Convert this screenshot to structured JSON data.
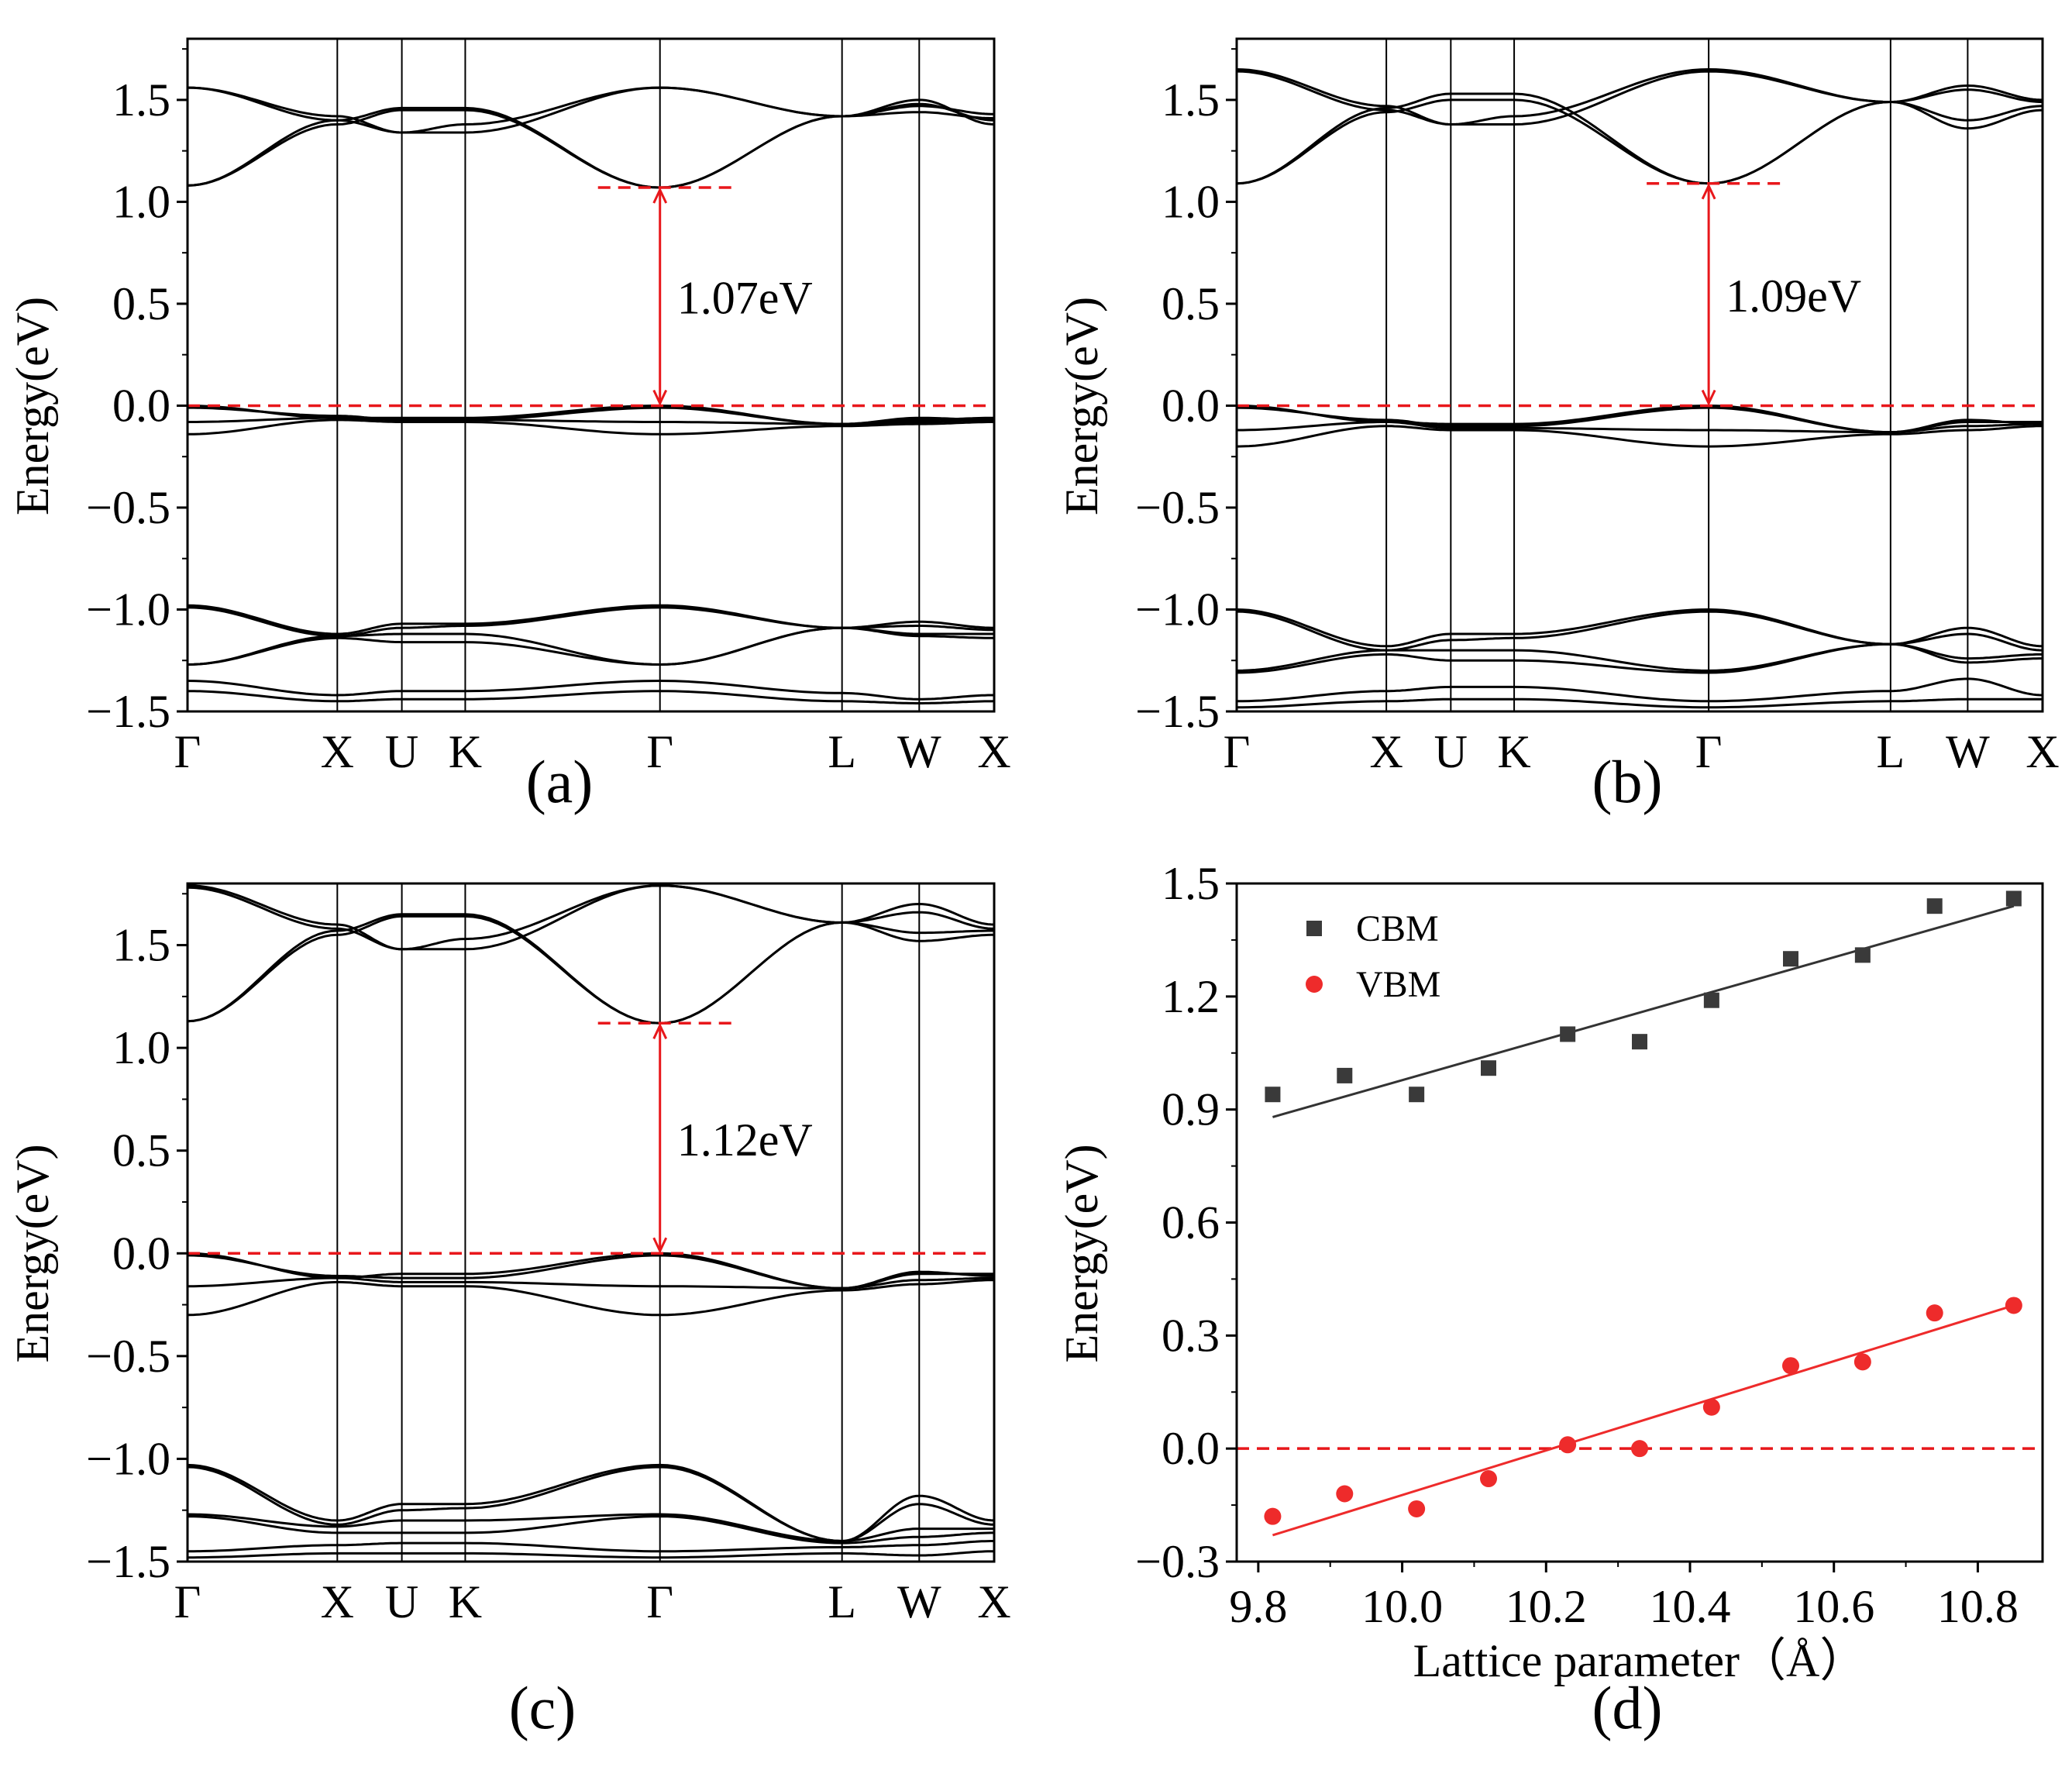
{
  "colors": {
    "band": "#000000",
    "red": "#e8171b",
    "cbm": "#3a3a3a",
    "vbm": "#ee2b2b",
    "fitCbm": "#333333",
    "fitVbm": "#ee2b2b"
  },
  "chart_data": [
    {
      "type": "line",
      "id": "a",
      "panel_label": "(a)",
      "ylabel": "Energy(eV)",
      "ylim": [
        -1.5,
        1.8
      ],
      "yticks": [
        1.5,
        1.0,
        0.5,
        0.0,
        -0.5,
        -1.0,
        -1.5
      ],
      "ytick_labels": [
        "1.5",
        "1.0",
        "0.5",
        "0.0",
        "−0.5",
        "−1.0",
        "−1.5"
      ],
      "kpath": [
        "Γ",
        "X",
        "U",
        "K",
        "Γ",
        "L",
        "W",
        "X"
      ],
      "kpos": [
        0,
        0.1857,
        0.2657,
        0.3443,
        0.5857,
        0.8114,
        0.9071,
        1.0
      ],
      "vbm": 0.0,
      "cbm": 1.07,
      "gap_label": "1.07eV",
      "conduction_bands": [
        {
          "pts": [
            1.08,
            1.38,
            1.45,
            1.45,
            1.07,
            1.42,
            1.44,
            1.41
          ]
        },
        {
          "pts": [
            1.08,
            1.4,
            1.46,
            1.46,
            1.07,
            1.42,
            1.47,
            1.43
          ]
        },
        {
          "pts": [
            1.56,
            1.4,
            1.34,
            1.34,
            1.56,
            1.42,
            1.5,
            1.38
          ]
        },
        {
          "pts": [
            1.56,
            1.42,
            1.34,
            1.38,
            1.56,
            1.42,
            1.48,
            1.4
          ]
        }
      ],
      "valence_bands": [
        {
          "pts": [
            0.0,
            -0.06,
            -0.06,
            -0.06,
            0.0,
            -0.09,
            -0.07,
            -0.06
          ]
        },
        {
          "pts": [
            -0.01,
            -0.05,
            -0.07,
            -0.07,
            -0.01,
            -0.09,
            -0.06,
            -0.07
          ]
        },
        {
          "pts": [
            -0.08,
            -0.06,
            -0.07,
            -0.07,
            -0.08,
            -0.09,
            -0.08,
            -0.07
          ]
        },
        {
          "pts": [
            -0.14,
            -0.07,
            -0.08,
            -0.08,
            -0.14,
            -0.1,
            -0.09,
            -0.08
          ]
        }
      ],
      "lower_bands": [
        {
          "pts": [
            -0.98,
            -1.12,
            -1.07,
            -1.07,
            -0.98,
            -1.09,
            -1.06,
            -1.09
          ]
        },
        {
          "pts": [
            -0.99,
            -1.13,
            -1.09,
            -1.08,
            -0.99,
            -1.09,
            -1.08,
            -1.1
          ]
        },
        {
          "pts": [
            -1.27,
            -1.13,
            -1.12,
            -1.12,
            -1.27,
            -1.09,
            -1.12,
            -1.12
          ]
        },
        {
          "pts": [
            -1.27,
            -1.14,
            -1.16,
            -1.16,
            -1.27,
            -1.09,
            -1.13,
            -1.14
          ]
        },
        {
          "pts": [
            -1.35,
            -1.42,
            -1.4,
            -1.4,
            -1.35,
            -1.41,
            -1.44,
            -1.42
          ]
        },
        {
          "pts": [
            -1.4,
            -1.45,
            -1.44,
            -1.44,
            -1.4,
            -1.45,
            -1.46,
            -1.45
          ]
        }
      ]
    },
    {
      "type": "line",
      "id": "b",
      "panel_label": "(b)",
      "ylabel": "Energy(eV)",
      "ylim": [
        -1.5,
        1.8
      ],
      "yticks": [
        1.5,
        1.0,
        0.5,
        0.0,
        -0.5,
        -1.0,
        -1.5
      ],
      "ytick_labels": [
        "1.5",
        "1.0",
        "0.5",
        "0.0",
        "−0.5",
        "−1.0",
        "−1.5"
      ],
      "kpath": [
        "Γ",
        "X",
        "U",
        "K",
        "Γ",
        "L",
        "W",
        "X"
      ],
      "kpos": [
        0,
        0.1857,
        0.2657,
        0.3443,
        0.5857,
        0.8114,
        0.9071,
        1.0
      ],
      "vbm": 0.0,
      "cbm": 1.09,
      "gap_label": "1.09eV",
      "conduction_bands": [
        {
          "pts": [
            1.09,
            1.44,
            1.5,
            1.5,
            1.09,
            1.49,
            1.55,
            1.49
          ]
        },
        {
          "pts": [
            1.09,
            1.46,
            1.53,
            1.53,
            1.09,
            1.49,
            1.57,
            1.5
          ]
        },
        {
          "pts": [
            1.64,
            1.45,
            1.38,
            1.38,
            1.64,
            1.49,
            1.36,
            1.45
          ]
        },
        {
          "pts": [
            1.65,
            1.47,
            1.38,
            1.42,
            1.65,
            1.49,
            1.4,
            1.47
          ]
        }
      ],
      "valence_bands": [
        {
          "pts": [
            0.0,
            -0.08,
            -0.09,
            -0.09,
            0.0,
            -0.13,
            -0.08,
            -0.08
          ]
        },
        {
          "pts": [
            -0.01,
            -0.07,
            -0.1,
            -0.1,
            -0.01,
            -0.13,
            -0.07,
            -0.09
          ]
        },
        {
          "pts": [
            -0.12,
            -0.08,
            -0.11,
            -0.11,
            -0.12,
            -0.13,
            -0.1,
            -0.09
          ]
        },
        {
          "pts": [
            -0.2,
            -0.1,
            -0.12,
            -0.12,
            -0.2,
            -0.14,
            -0.12,
            -0.1
          ]
        }
      ],
      "lower_bands": [
        {
          "pts": [
            -1.0,
            -1.18,
            -1.12,
            -1.12,
            -1.0,
            -1.17,
            -1.09,
            -1.18
          ]
        },
        {
          "pts": [
            -1.01,
            -1.2,
            -1.15,
            -1.14,
            -1.01,
            -1.17,
            -1.12,
            -1.2
          ]
        },
        {
          "pts": [
            -1.3,
            -1.2,
            -1.2,
            -1.2,
            -1.3,
            -1.17,
            -1.24,
            -1.22
          ]
        },
        {
          "pts": [
            -1.31,
            -1.22,
            -1.25,
            -1.25,
            -1.31,
            -1.17,
            -1.26,
            -1.24
          ]
        },
        {
          "pts": [
            -1.45,
            -1.4,
            -1.38,
            -1.38,
            -1.45,
            -1.4,
            -1.34,
            -1.42
          ]
        },
        {
          "pts": [
            -1.48,
            -1.45,
            -1.44,
            -1.44,
            -1.48,
            -1.45,
            -1.44,
            -1.44
          ]
        }
      ]
    },
    {
      "type": "line",
      "id": "c",
      "panel_label": "(c)",
      "ylabel": "Energy(eV)",
      "ylim": [
        -1.5,
        1.8
      ],
      "yticks": [
        1.5,
        1.0,
        0.5,
        0.0,
        -0.5,
        -1.0,
        -1.5
      ],
      "ytick_labels": [
        "1.5",
        "1.0",
        "0.5",
        "0.0",
        "−0.5",
        "−1.0",
        "−1.5"
      ],
      "kpath": [
        "Γ",
        "X",
        "U",
        "K",
        "Γ",
        "L",
        "W",
        "X"
      ],
      "kpos": [
        0,
        0.1857,
        0.2657,
        0.3443,
        0.5857,
        0.8114,
        0.9071,
        1.0
      ],
      "vbm": 0.0,
      "cbm": 1.12,
      "gap_label": "1.12eV",
      "conduction_bands": [
        {
          "pts": [
            1.13,
            1.55,
            1.64,
            1.64,
            1.12,
            1.61,
            1.66,
            1.58
          ]
        },
        {
          "pts": [
            1.13,
            1.57,
            1.65,
            1.65,
            1.12,
            1.61,
            1.7,
            1.6
          ]
        },
        {
          "pts": [
            1.78,
            1.58,
            1.48,
            1.48,
            1.79,
            1.61,
            1.52,
            1.55
          ]
        },
        {
          "pts": [
            1.79,
            1.6,
            1.48,
            1.53,
            1.79,
            1.61,
            1.56,
            1.57
          ]
        }
      ],
      "valence_bands": [
        {
          "pts": [
            0.0,
            -0.12,
            -0.1,
            -0.1,
            0.0,
            -0.17,
            -0.1,
            -0.1
          ]
        },
        {
          "pts": [
            -0.01,
            -0.11,
            -0.12,
            -0.12,
            -0.01,
            -0.17,
            -0.09,
            -0.11
          ]
        },
        {
          "pts": [
            -0.16,
            -0.12,
            -0.14,
            -0.14,
            -0.16,
            -0.17,
            -0.13,
            -0.12
          ]
        },
        {
          "pts": [
            -0.3,
            -0.14,
            -0.16,
            -0.16,
            -0.3,
            -0.18,
            -0.15,
            -0.13
          ]
        }
      ],
      "lower_bands": [
        {
          "pts": [
            -1.03,
            -1.3,
            -1.22,
            -1.22,
            -1.03,
            -1.4,
            -1.18,
            -1.3
          ]
        },
        {
          "pts": [
            -1.04,
            -1.32,
            -1.25,
            -1.24,
            -1.04,
            -1.4,
            -1.22,
            -1.32
          ]
        },
        {
          "pts": [
            -1.27,
            -1.33,
            -1.3,
            -1.3,
            -1.27,
            -1.4,
            -1.34,
            -1.34
          ]
        },
        {
          "pts": [
            -1.28,
            -1.36,
            -1.36,
            -1.36,
            -1.28,
            -1.41,
            -1.38,
            -1.36
          ]
        },
        {
          "pts": [
            -1.45,
            -1.42,
            -1.41,
            -1.41,
            -1.45,
            -1.43,
            -1.42,
            -1.4
          ]
        },
        {
          "pts": [
            -1.48,
            -1.46,
            -1.46,
            -1.46,
            -1.48,
            -1.46,
            -1.47,
            -1.45
          ]
        }
      ]
    },
    {
      "type": "scatter",
      "id": "d",
      "panel_label": "(d)",
      "xlabel": "Lattice parameter（Å）",
      "ylabel": "Energy(eV)",
      "xlim": [
        9.77,
        10.89
      ],
      "ylim": [
        -0.3,
        1.5
      ],
      "xticks": [
        9.8,
        10.0,
        10.2,
        10.4,
        10.6,
        10.8
      ],
      "xtick_labels": [
        "9.8",
        "10.0",
        "10.2",
        "10.4",
        "10.6",
        "10.8"
      ],
      "yticks": [
        -0.3,
        0.0,
        0.3,
        0.6,
        0.9,
        1.2,
        1.5
      ],
      "ytick_labels": [
        "−0.3",
        "0.0",
        "0.3",
        "0.6",
        "0.9",
        "1.2",
        "1.5"
      ],
      "zero_line": 0.0,
      "series": [
        {
          "name": "CBM",
          "marker": "square",
          "x": [
            9.82,
            9.92,
            10.02,
            10.12,
            10.23,
            10.33,
            10.43,
            10.54,
            10.64,
            10.74,
            10.85
          ],
          "y": [
            0.94,
            0.99,
            0.94,
            1.01,
            1.1,
            1.08,
            1.19,
            1.3,
            1.31,
            1.44,
            1.46
          ],
          "fit": {
            "x": [
              9.82,
              10.85
            ],
            "y": [
              0.88,
              1.44
            ]
          }
        },
        {
          "name": "VBM",
          "marker": "circle",
          "x": [
            9.82,
            9.92,
            10.02,
            10.12,
            10.23,
            10.33,
            10.43,
            10.54,
            10.64,
            10.74,
            10.85
          ],
          "y": [
            -0.18,
            -0.12,
            -0.16,
            -0.08,
            0.01,
            0.0,
            0.11,
            0.22,
            0.23,
            0.36,
            0.38
          ],
          "fit": {
            "x": [
              9.82,
              10.85
            ],
            "y": [
              -0.23,
              0.38
            ]
          }
        }
      ]
    }
  ]
}
